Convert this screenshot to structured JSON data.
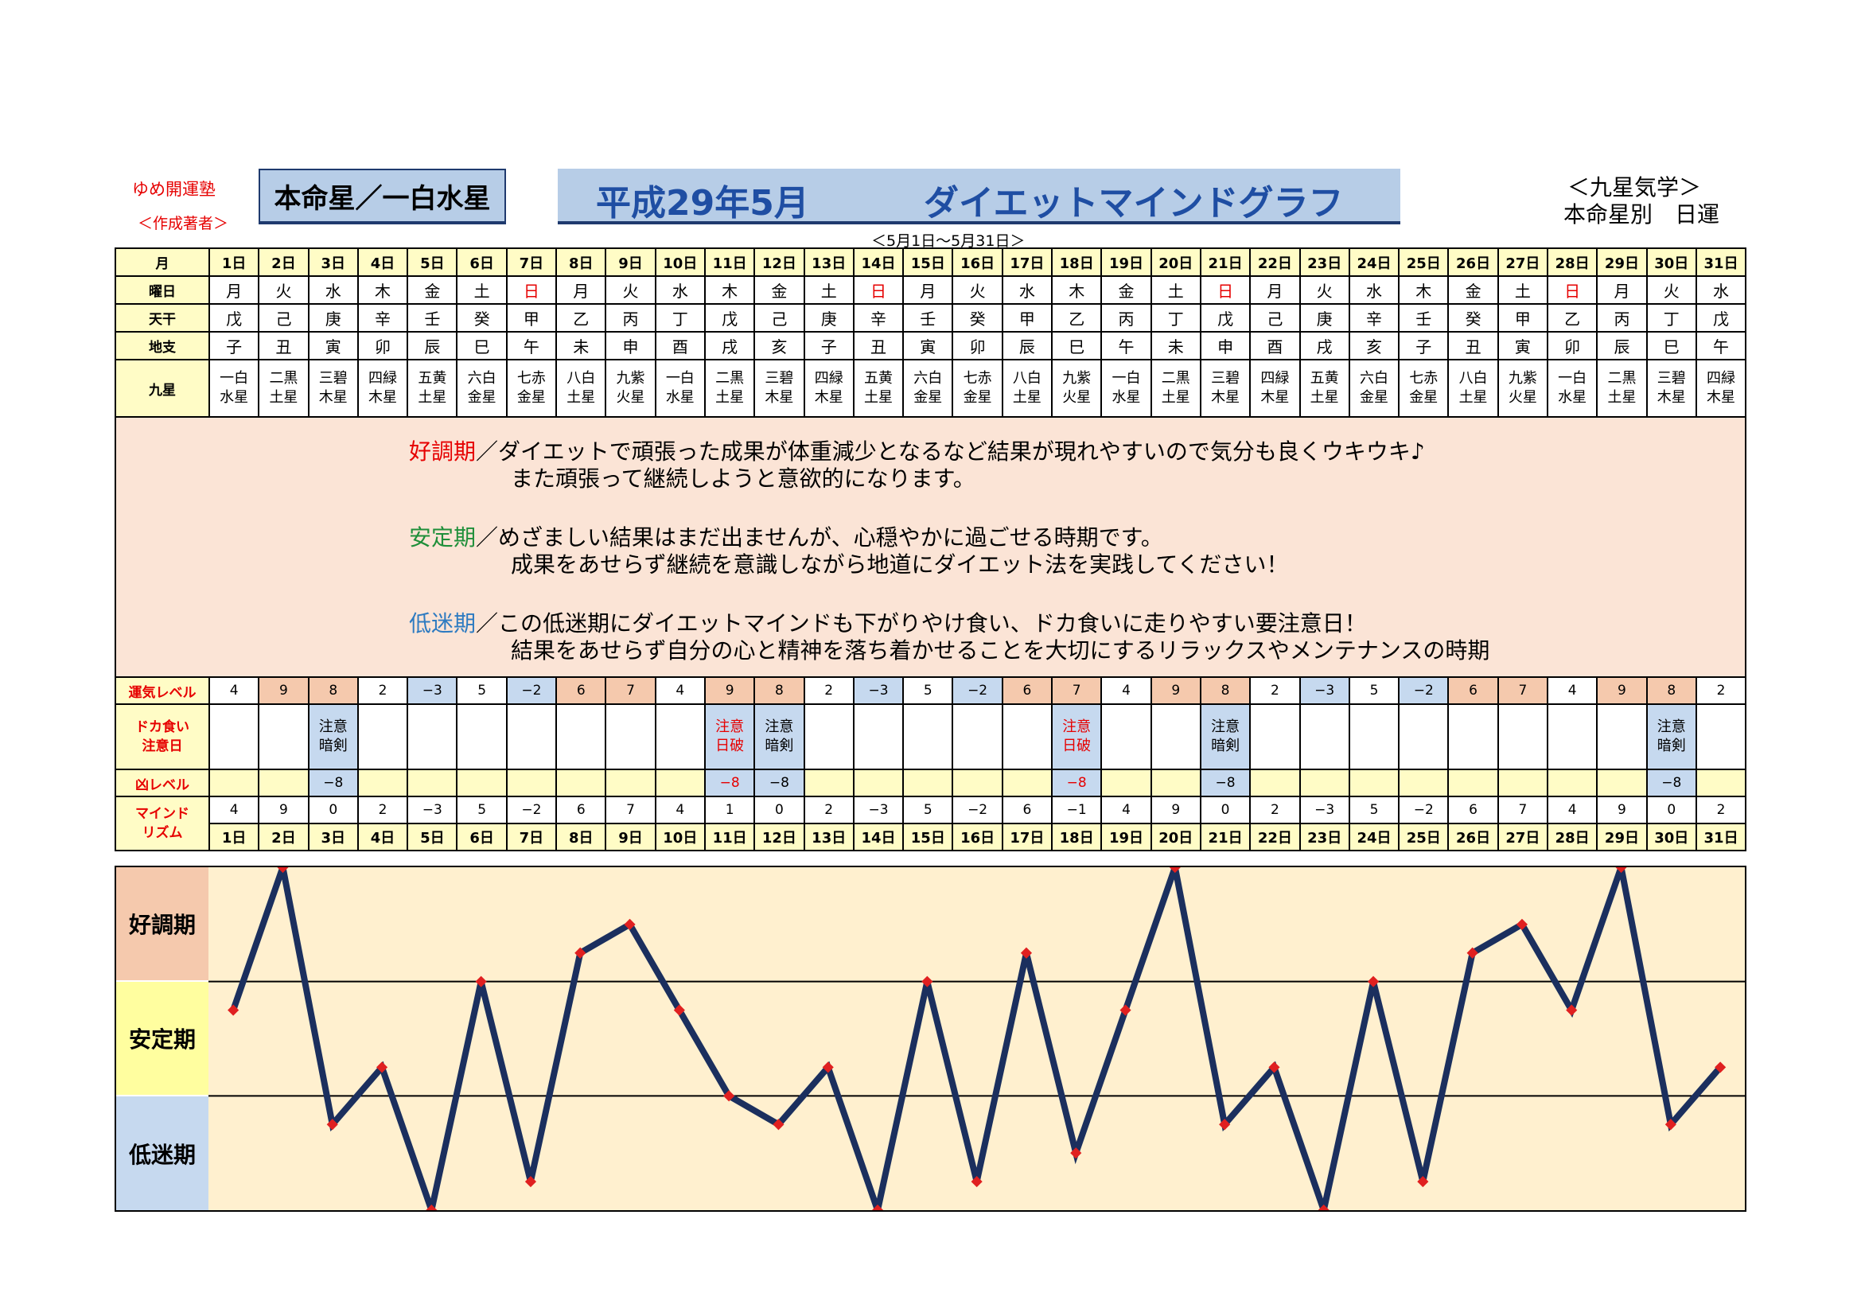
{
  "header": {
    "publisher": "ゆめ開運塾",
    "author_note": "＜作成著者＞",
    "honmei": "本命星／一白水星",
    "title_date": "平成29年5月",
    "title_name": "ダイエットマインドグラフ",
    "right_line1": "＜九星気学＞",
    "right_line2": "本命星別　日運",
    "period": "＜5月1日～5月31日＞"
  },
  "rows": {
    "month_label": "月",
    "weekday_label": "曜日",
    "tenkan_label": "天干",
    "chishi_label": "地支",
    "kyusei_label": "九星",
    "fortune_label": "運気レベル",
    "binge_label_1": "ドカ食い",
    "binge_label_2": "注意日",
    "bad_label": "凶レベル",
    "mind_label_1": "マインド",
    "mind_label_2": "リズム"
  },
  "days": [
    "1日",
    "2日",
    "3日",
    "4日",
    "5日",
    "6日",
    "7日",
    "8日",
    "9日",
    "10日",
    "11日",
    "12日",
    "13日",
    "14日",
    "15日",
    "16日",
    "17日",
    "18日",
    "19日",
    "20日",
    "21日",
    "22日",
    "23日",
    "24日",
    "25日",
    "26日",
    "27日",
    "28日",
    "29日",
    "30日",
    "31日"
  ],
  "weekdays": [
    "月",
    "火",
    "水",
    "木",
    "金",
    "土",
    "日",
    "月",
    "火",
    "水",
    "木",
    "金",
    "土",
    "日",
    "月",
    "火",
    "水",
    "木",
    "金",
    "土",
    "日",
    "月",
    "火",
    "水",
    "木",
    "金",
    "土",
    "日",
    "月",
    "火",
    "水"
  ],
  "tenkan": [
    "戊",
    "己",
    "庚",
    "辛",
    "壬",
    "癸",
    "甲",
    "乙",
    "丙",
    "丁",
    "戊",
    "己",
    "庚",
    "辛",
    "壬",
    "癸",
    "甲",
    "乙",
    "丙",
    "丁",
    "戊",
    "己",
    "庚",
    "辛",
    "壬",
    "癸",
    "甲",
    "乙",
    "丙",
    "丁",
    "戊"
  ],
  "chishi": [
    "子",
    "丑",
    "寅",
    "卯",
    "辰",
    "巳",
    "午",
    "未",
    "申",
    "酉",
    "戌",
    "亥",
    "子",
    "丑",
    "寅",
    "卯",
    "辰",
    "巳",
    "午",
    "未",
    "申",
    "酉",
    "戌",
    "亥",
    "子",
    "丑",
    "寅",
    "卯",
    "辰",
    "巳",
    "午"
  ],
  "kyusei_top": [
    "一白",
    "二黒",
    "三碧",
    "四緑",
    "五黄",
    "六白",
    "七赤",
    "八白",
    "九紫",
    "一白",
    "二黒",
    "三碧",
    "四緑",
    "五黄",
    "六白",
    "七赤",
    "八白",
    "九紫",
    "一白",
    "二黒",
    "三碧",
    "四緑",
    "五黄",
    "六白",
    "七赤",
    "八白",
    "九紫",
    "一白",
    "二黒",
    "三碧",
    "四緑"
  ],
  "kyusei_bottom": [
    "水星",
    "土星",
    "木星",
    "木星",
    "土星",
    "金星",
    "金星",
    "土星",
    "火星",
    "水星",
    "土星",
    "木星",
    "木星",
    "土星",
    "金星",
    "金星",
    "土星",
    "火星",
    "水星",
    "土星",
    "木星",
    "木星",
    "土星",
    "金星",
    "金星",
    "土星",
    "火星",
    "水星",
    "土星",
    "木星",
    "木星"
  ],
  "descriptions": {
    "good_key": "好調期",
    "good_line1": "／ダイエットで頑張った成果が体重減少となるなど結果が現れやすいので気分も良くウキウキ♪",
    "good_line2": "また頑張って継続しようと意欲的になります。",
    "stable_key": "安定期",
    "stable_line1": "／めざましい結果はまだ出ませんが、心穏やかに過ごせる時期です。",
    "stable_line2": "成果をあせらず継続を意識しながら地道にダイエット法を実践してください！",
    "low_key": "低迷期",
    "low_line1": "／この低迷期にダイエットマインドも下がりやけ食い、ドカ食いに走りやすい要注意日！",
    "low_line2": "結果をあせらず自分の心と精神を落ち着かせることを大切にするリラックスやメンテナンスの時期"
  },
  "fortune_levels": [
    "4",
    "9",
    "8",
    "2",
    "−3",
    "5",
    "−2",
    "6",
    "7",
    "4",
    "9",
    "8",
    "2",
    "−3",
    "5",
    "−2",
    "6",
    "7",
    "4",
    "9",
    "8",
    "2",
    "−3",
    "5",
    "−2",
    "6",
    "7",
    "4",
    "9",
    "8",
    "2"
  ],
  "fortune_colors": {
    "high": "#f5c9ad",
    "low": "#c6d9ef"
  },
  "binge_top": [
    "",
    "",
    "注意",
    "",
    "",
    "",
    "",
    "",
    "",
    "",
    "注意",
    "注意",
    "",
    "",
    "",
    "",
    "",
    "注意",
    "",
    "",
    "注意",
    "",
    "",
    "",
    "",
    "",
    "",
    "",
    "",
    "注意",
    ""
  ],
  "binge_bottom": [
    "",
    "",
    "暗剣",
    "",
    "",
    "",
    "",
    "",
    "",
    "",
    "日破",
    "暗剣",
    "",
    "",
    "",
    "",
    "",
    "日破",
    "",
    "",
    "暗剣",
    "",
    "",
    "",
    "",
    "",
    "",
    "",
    "",
    "暗剣",
    ""
  ],
  "binge_red": [
    false,
    false,
    false,
    false,
    false,
    false,
    false,
    false,
    false,
    false,
    true,
    false,
    false,
    false,
    false,
    false,
    false,
    true,
    false,
    false,
    false,
    false,
    false,
    false,
    false,
    false,
    false,
    false,
    false,
    false,
    false
  ],
  "bad_levels": [
    "",
    "",
    "−8",
    "",
    "",
    "",
    "",
    "",
    "",
    "",
    "−8",
    "−8",
    "",
    "",
    "",
    "",
    "",
    "−8",
    "",
    "",
    "−8",
    "",
    "",
    "",
    "",
    "",
    "",
    "",
    "",
    "−8",
    ""
  ],
  "mind_rhythm": [
    "4",
    "9",
    "0",
    "2",
    "−3",
    "5",
    "−2",
    "6",
    "7",
    "4",
    "1",
    "0",
    "2",
    "−3",
    "5",
    "−2",
    "6",
    "−1",
    "4",
    "9",
    "0",
    "2",
    "−3",
    "5",
    "−2",
    "6",
    "7",
    "4",
    "9",
    "0",
    "2"
  ],
  "zones": {
    "good": "好調期",
    "stable": "安定期",
    "low": "低迷期"
  },
  "chart_data": {
    "type": "line",
    "x": [
      "1日",
      "2日",
      "3日",
      "4日",
      "5日",
      "6日",
      "7日",
      "8日",
      "9日",
      "10日",
      "11日",
      "12日",
      "13日",
      "14日",
      "15日",
      "16日",
      "17日",
      "18日",
      "19日",
      "20日",
      "21日",
      "22日",
      "23日",
      "24日",
      "25日",
      "26日",
      "27日",
      "28日",
      "29日",
      "30日",
      "31日"
    ],
    "series": [
      {
        "values": [
          4,
          9,
          0,
          2,
          -3,
          5,
          -2,
          6,
          7,
          4,
          1,
          0,
          2,
          -3,
          5,
          -2,
          6,
          -1,
          4,
          9,
          0,
          2,
          -3,
          5,
          -2,
          6,
          7,
          4,
          9,
          0,
          2
        ]
      }
    ],
    "ylim": [
      -3,
      9
    ],
    "bands": [
      "好調期",
      "安定期",
      "低迷期"
    ],
    "line_color": "#1b2f5e",
    "marker_color": "#e02020"
  }
}
